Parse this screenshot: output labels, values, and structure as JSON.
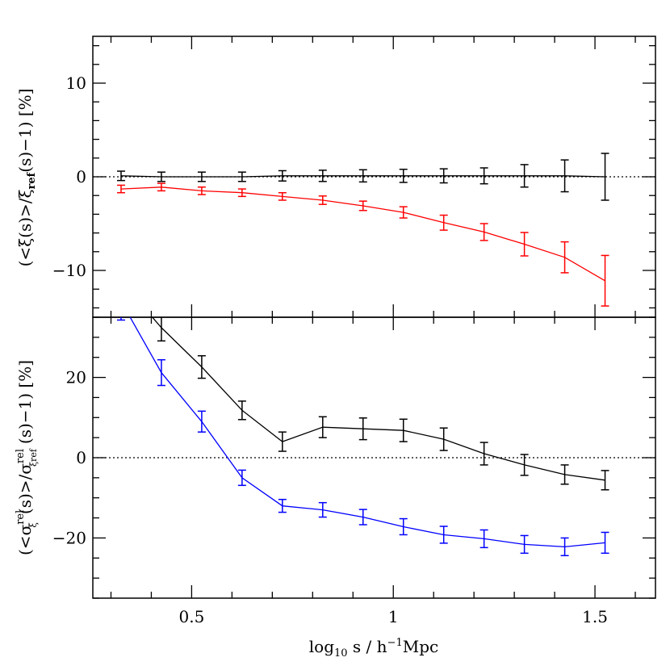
{
  "chart_data": [
    {
      "type": "line",
      "panel": "top",
      "xlim": [
        0.255,
        1.65
      ],
      "ylim": [
        -15,
        15
      ],
      "yticks": [
        -10,
        0,
        10
      ],
      "ytick_labels": [
        "−10",
        "0",
        "10"
      ],
      "ylabel_parts": [
        "(<ξ(s)>/ξ",
        "ref",
        "(s)−1)  [%]"
      ],
      "reference_line": {
        "y": 0,
        "style": "dotted"
      },
      "series": [
        {
          "color": "#000000",
          "x": [
            0.325,
            0.425,
            0.525,
            0.625,
            0.725,
            0.825,
            0.925,
            1.025,
            1.125,
            1.225,
            1.325,
            1.425,
            1.525
          ],
          "y": [
            0.1,
            0.0,
            0.0,
            0.0,
            0.1,
            0.1,
            0.1,
            0.1,
            0.1,
            0.1,
            0.1,
            0.1,
            0.0
          ],
          "err": [
            0.5,
            0.5,
            0.5,
            0.5,
            0.55,
            0.6,
            0.65,
            0.7,
            0.75,
            0.85,
            1.2,
            1.7,
            2.5
          ]
        },
        {
          "color": "#ff0000",
          "x": [
            0.325,
            0.425,
            0.525,
            0.625,
            0.725,
            0.825,
            0.925,
            1.025,
            1.125,
            1.225,
            1.325,
            1.425,
            1.525
          ],
          "y": [
            -1.3,
            -1.1,
            -1.5,
            -1.7,
            -2.1,
            -2.5,
            -3.1,
            -3.8,
            -4.9,
            -5.9,
            -7.2,
            -8.6,
            -11.1
          ],
          "err": [
            0.4,
            0.4,
            0.4,
            0.4,
            0.4,
            0.45,
            0.5,
            0.6,
            0.8,
            0.9,
            1.25,
            1.65,
            2.7
          ]
        }
      ]
    },
    {
      "type": "line",
      "panel": "bottom",
      "xlim": [
        0.255,
        1.65
      ],
      "ylim": [
        -35,
        35
      ],
      "yticks": [
        -20,
        0,
        20
      ],
      "ytick_labels": [
        "−20",
        "0",
        "20"
      ],
      "xticks": [
        0.5,
        1,
        1.5
      ],
      "xtick_labels": [
        "0.5",
        "1",
        "1.5"
      ],
      "xlabel_parts": [
        "log",
        "10",
        " s / h",
        "−1",
        "Mpc"
      ],
      "ylabel_parts": [
        "(<σ",
        "rel",
        "ξ",
        "(s)>/σ",
        "rel",
        "ξref",
        "(s)−1)  [%]"
      ],
      "reference_line": {
        "y": 0,
        "style": "dotted"
      },
      "series": [
        {
          "color": "#000000",
          "x": [
            0.325,
            0.425,
            0.525,
            0.625,
            0.725,
            0.825,
            0.925,
            1.025,
            1.125,
            1.225,
            1.325,
            1.425,
            1.525
          ],
          "y": [
            44,
            32.4,
            22.6,
            11.8,
            4.0,
            7.6,
            7.2,
            6.8,
            4.6,
            1.0,
            -1.8,
            -4.2,
            -5.6
          ],
          "err": [
            3.5,
            3.3,
            2.8,
            2.3,
            2.4,
            2.6,
            2.7,
            2.8,
            2.8,
            2.8,
            2.6,
            2.4,
            2.4
          ]
        },
        {
          "color": "#0000ff",
          "x": [
            0.325,
            0.425,
            0.525,
            0.625,
            0.725,
            0.825,
            0.925,
            1.025,
            1.125,
            1.225,
            1.325,
            1.425,
            1.525
          ],
          "y": [
            39,
            21.2,
            9.0,
            -5.0,
            -12.0,
            -13.0,
            -14.8,
            -17.2,
            -19.2,
            -20.2,
            -21.6,
            -22.2,
            -21.2
          ],
          "err": [
            4.7,
            3.2,
            2.6,
            1.9,
            1.6,
            1.8,
            1.9,
            2.0,
            2.1,
            2.2,
            2.2,
            2.2,
            2.6
          ]
        }
      ]
    }
  ]
}
